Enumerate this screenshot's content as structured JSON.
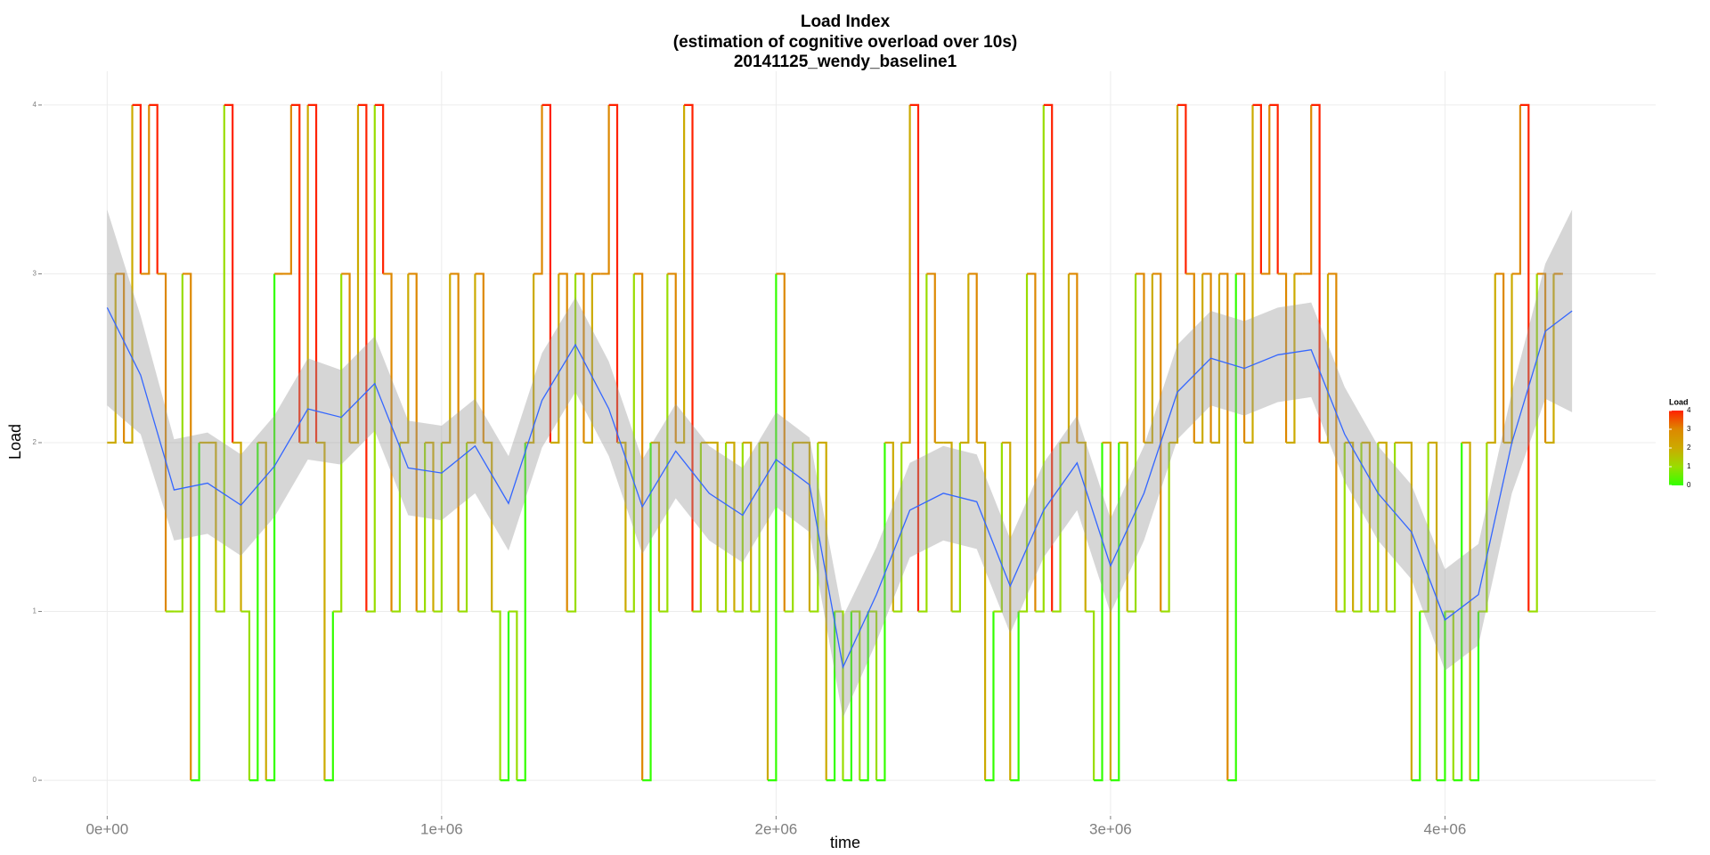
{
  "chart_data": {
    "type": "step",
    "title": [
      "Load Index",
      "(estimation of cognitive overload over 10s)",
      "20141125_wendy_baseline1"
    ],
    "x_label": "time",
    "y_label": "Load",
    "xlim": [
      -190000,
      4630000
    ],
    "ylim": [
      -0.2,
      4.2
    ],
    "xticks": [
      {
        "value": 0,
        "label": "0e+00"
      },
      {
        "value": 1000000,
        "label": "1e+06"
      },
      {
        "value": 2000000,
        "label": "2e+06"
      },
      {
        "value": 3000000,
        "label": "3e+06"
      },
      {
        "value": 4000000,
        "label": "4e+06"
      }
    ],
    "yticks": [
      0,
      1,
      2,
      3,
      4
    ],
    "grid": true,
    "x": [
      0,
      25000,
      50000,
      75000,
      100000,
      125000,
      150000,
      175000,
      200000,
      225000,
      250000,
      275000,
      300000,
      325000,
      350000,
      375000,
      400000,
      425000,
      450000,
      475000,
      500000,
      525000,
      550000,
      575000,
      600000,
      625000,
      650000,
      675000,
      700000,
      725000,
      750000,
      775000,
      800000,
      825000,
      850000,
      875000,
      900000,
      925000,
      950000,
      975000,
      1000000,
      1025000,
      1050000,
      1075000,
      1100000,
      1125000,
      1150000,
      1175000,
      1200000,
      1225000,
      1250000,
      1275000,
      1300000,
      1325000,
      1350000,
      1375000,
      1400000,
      1425000,
      1450000,
      1475000,
      1500000,
      1525000,
      1550000,
      1575000,
      1600000,
      1625000,
      1650000,
      1675000,
      1700000,
      1725000,
      1750000,
      1775000,
      1800000,
      1825000,
      1850000,
      1875000,
      1900000,
      1925000,
      1950000,
      1975000,
      2000000,
      2025000,
      2050000,
      2075000,
      2100000,
      2125000,
      2150000,
      2175000,
      2200000,
      2225000,
      2250000,
      2275000,
      2300000,
      2325000,
      2350000,
      2375000,
      2400000,
      2425000,
      2450000,
      2475000,
      2500000,
      2525000,
      2550000,
      2575000,
      2600000,
      2625000,
      2650000,
      2675000,
      2700000,
      2725000,
      2750000,
      2775000,
      2800000,
      2825000,
      2850000,
      2875000,
      2900000,
      2925000,
      2950000,
      2975000,
      3000000,
      3025000,
      3050000,
      3075000,
      3100000,
      3125000,
      3150000,
      3175000,
      3200000,
      3225000,
      3250000,
      3275000,
      3300000,
      3325000,
      3350000,
      3375000,
      3400000,
      3425000,
      3450000,
      3475000,
      3500000,
      3525000,
      3550000,
      3575000,
      3600000,
      3625000,
      3650000,
      3675000,
      3700000,
      3725000,
      3750000,
      3775000,
      3800000,
      3825000,
      3850000,
      3875000,
      3900000,
      3925000,
      3950000,
      3975000,
      4000000,
      4025000,
      4050000,
      4075000,
      4100000,
      4125000,
      4150000,
      4175000,
      4200000,
      4225000,
      4250000,
      4275000,
      4300000,
      4325000,
      4350000
    ],
    "values": [
      2,
      3,
      2,
      4,
      3,
      4,
      3,
      1,
      1,
      3,
      0,
      2,
      2,
      1,
      4,
      2,
      1,
      0,
      2,
      0,
      3,
      3,
      4,
      2,
      4,
      2,
      0,
      1,
      3,
      2,
      4,
      1,
      4,
      3,
      1,
      2,
      3,
      1,
      2,
      1,
      2,
      3,
      1,
      2,
      3,
      2,
      1,
      0,
      1,
      0,
      2,
      3,
      4,
      2,
      3,
      1,
      3,
      2,
      3,
      3,
      4,
      2,
      1,
      3,
      0,
      2,
      1,
      3,
      2,
      4,
      1,
      2,
      2,
      1,
      2,
      1,
      2,
      1,
      2,
      0,
      3,
      1,
      2,
      2,
      1,
      2,
      0,
      1,
      0,
      1,
      0,
      1,
      0,
      2,
      1,
      2,
      4,
      1,
      3,
      2,
      2,
      1,
      2,
      3,
      2,
      0,
      1,
      2,
      0,
      1,
      3,
      1,
      4,
      1,
      2,
      3,
      2,
      1,
      0,
      2,
      0,
      2,
      1,
      3,
      2,
      3,
      1,
      2,
      4,
      3,
      2,
      3,
      2,
      3,
      0,
      3,
      2,
      4,
      3,
      4,
      3,
      2,
      3,
      3,
      4,
      2,
      3,
      1,
      2,
      1,
      2,
      1,
      2,
      1,
      2,
      2,
      0,
      1,
      2,
      0,
      1,
      0,
      2,
      0,
      1,
      2,
      3,
      2,
      3,
      4,
      1,
      3,
      2,
      3,
      3
    ],
    "legend_title": "Load",
    "legend_ticks": [
      0,
      1,
      2,
      3,
      4
    ],
    "gradient": [
      "#33ff00",
      "#99dd00",
      "#ccaa00",
      "#dd8800",
      "#ff2200"
    ],
    "smooth": {
      "color": "#3366ff",
      "ribbon_color": "#999999",
      "x": [
        0,
        100000,
        200000,
        300000,
        400000,
        500000,
        600000,
        700000,
        800000,
        900000,
        1000000,
        1100000,
        1200000,
        1300000,
        1400000,
        1500000,
        1600000,
        1700000,
        1800000,
        1900000,
        2000000,
        2100000,
        2200000,
        2300000,
        2400000,
        2500000,
        2600000,
        2700000,
        2800000,
        2900000,
        3000000,
        3100000,
        3200000,
        3300000,
        3400000,
        3500000,
        3600000,
        3700000,
        3800000,
        3900000,
        4000000,
        4100000,
        4200000,
        4300000,
        4380000
      ],
      "values": [
        2.8,
        2.4,
        1.72,
        1.76,
        1.63,
        1.86,
        2.2,
        2.15,
        2.35,
        1.85,
        1.82,
        1.98,
        1.64,
        2.25,
        2.58,
        2.2,
        1.62,
        1.95,
        1.7,
        1.57,
        1.9,
        1.75,
        0.67,
        1.1,
        1.6,
        1.7,
        1.65,
        1.15,
        1.6,
        1.88,
        1.27,
        1.7,
        2.3,
        2.5,
        2.44,
        2.52,
        2.55,
        2.05,
        1.7,
        1.47,
        0.95,
        1.1,
        2.0,
        2.66,
        2.78
      ],
      "se": [
        0.58,
        0.35,
        0.3,
        0.3,
        0.3,
        0.3,
        0.3,
        0.28,
        0.28,
        0.28,
        0.28,
        0.28,
        0.28,
        0.28,
        0.28,
        0.28,
        0.28,
        0.28,
        0.28,
        0.28,
        0.28,
        0.28,
        0.3,
        0.28,
        0.28,
        0.28,
        0.28,
        0.28,
        0.28,
        0.28,
        0.28,
        0.28,
        0.28,
        0.28,
        0.28,
        0.28,
        0.28,
        0.28,
        0.28,
        0.28,
        0.3,
        0.3,
        0.3,
        0.4,
        0.6
      ]
    }
  }
}
